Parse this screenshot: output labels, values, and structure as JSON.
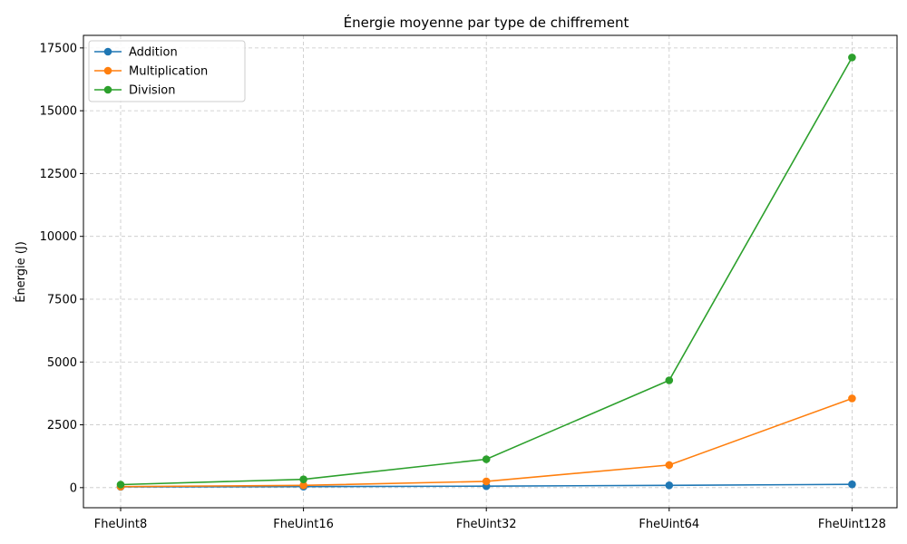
{
  "chart_data": {
    "type": "line",
    "title": "Énergie moyenne par type de chiffrement",
    "xlabel": "",
    "ylabel": "Énergie (J)",
    "categories": [
      "FheUint8",
      "FheUint16",
      "FheUint32",
      "FheUint64",
      "FheUint128"
    ],
    "ylim": [
      -800,
      18000
    ],
    "yticks": [
      0,
      2500,
      5000,
      7500,
      10000,
      12500,
      15000,
      17500
    ],
    "grid": true,
    "legend_position": "top-left",
    "series": [
      {
        "name": "Addition",
        "color": "#1f77b4",
        "values": [
          30,
          40,
          60,
          90,
          130
        ]
      },
      {
        "name": "Multiplication",
        "color": "#ff7f0e",
        "values": [
          40,
          90,
          250,
          900,
          3550
        ]
      },
      {
        "name": "Division",
        "color": "#2ca02c",
        "values": [
          120,
          330,
          1130,
          4270,
          17120
        ]
      }
    ]
  }
}
